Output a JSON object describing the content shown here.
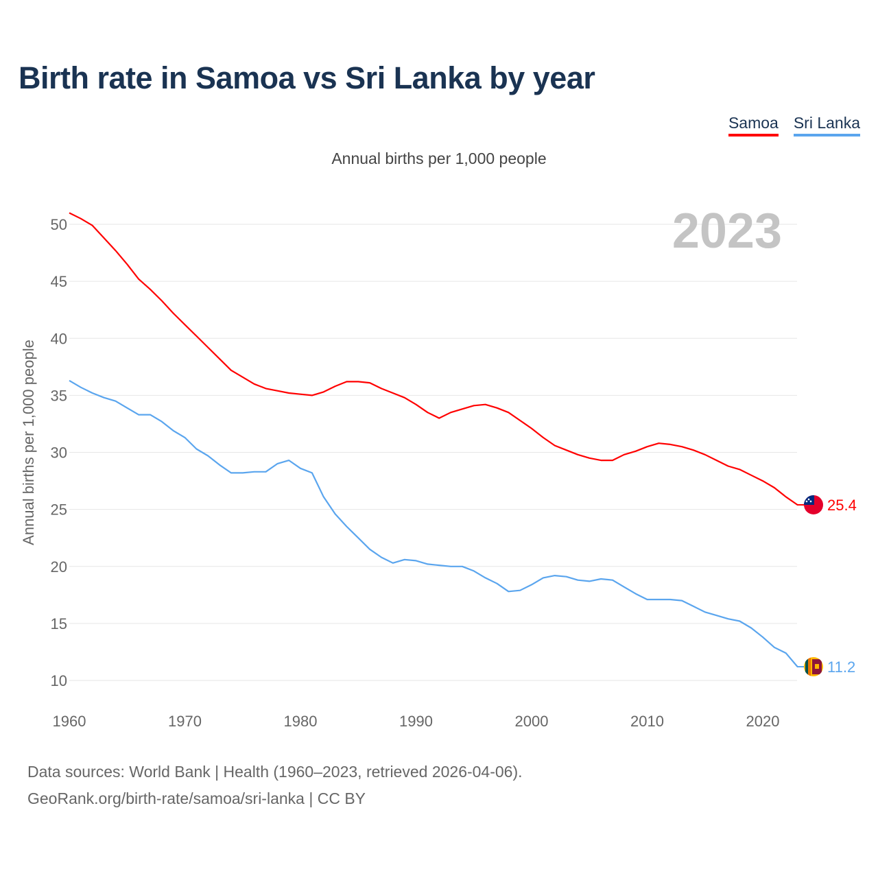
{
  "title": "Birth rate in Samoa vs Sri Lanka by year",
  "legend": [
    {
      "label": "Samoa",
      "color": "#ff0000"
    },
    {
      "label": "Sri Lanka",
      "color": "#5aa5ee"
    }
  ],
  "footer": {
    "line1": "Data sources: World Bank | Health (1960–2023, retrieved 2026-04-06).",
    "line2": "GeoRank.org/birth-rate/samoa/sri-lanka | CC BY"
  },
  "chart_data": {
    "type": "line",
    "title": "Birth rate in Samoa vs Sri Lanka by year",
    "subtitle": "Annual births per 1,000 people",
    "ylabel": "Annual births per 1,000 people",
    "xlabel": "",
    "year_watermark": "2023",
    "xlim": [
      1960,
      2023
    ],
    "ylim": [
      8,
      52
    ],
    "yticks": [
      10,
      15,
      20,
      25,
      30,
      35,
      40,
      45,
      50
    ],
    "xticks": [
      1960,
      1970,
      1980,
      1990,
      2000,
      2010,
      2020
    ],
    "grid": true,
    "legend_position": "top-right",
    "x": [
      1960,
      1961,
      1962,
      1963,
      1964,
      1965,
      1966,
      1967,
      1968,
      1969,
      1970,
      1971,
      1972,
      1973,
      1974,
      1975,
      1976,
      1977,
      1978,
      1979,
      1980,
      1981,
      1982,
      1983,
      1984,
      1985,
      1986,
      1987,
      1988,
      1989,
      1990,
      1991,
      1992,
      1993,
      1994,
      1995,
      1996,
      1997,
      1998,
      1999,
      2000,
      2001,
      2002,
      2003,
      2004,
      2005,
      2006,
      2007,
      2008,
      2009,
      2010,
      2011,
      2012,
      2013,
      2014,
      2015,
      2016,
      2017,
      2018,
      2019,
      2020,
      2021,
      2022,
      2023
    ],
    "series": [
      {
        "name": "Samoa",
        "color": "#ff0000",
        "end_label": "25.4",
        "values": [
          51.0,
          50.5,
          49.9,
          48.8,
          47.7,
          46.5,
          45.2,
          44.3,
          43.3,
          42.2,
          41.2,
          40.2,
          39.2,
          38.2,
          37.2,
          36.6,
          36.0,
          35.6,
          35.4,
          35.2,
          35.1,
          35.0,
          35.3,
          35.8,
          36.2,
          36.2,
          36.1,
          35.6,
          35.2,
          34.8,
          34.2,
          33.5,
          33.0,
          33.5,
          33.8,
          34.1,
          34.2,
          33.9,
          33.5,
          32.8,
          32.1,
          31.3,
          30.6,
          30.2,
          29.8,
          29.5,
          29.3,
          29.3,
          29.8,
          30.1,
          30.5,
          30.8,
          30.7,
          30.5,
          30.2,
          29.8,
          29.3,
          28.8,
          28.5,
          28.0,
          27.5,
          26.9,
          26.1,
          25.4
        ]
      },
      {
        "name": "Sri Lanka",
        "color": "#5aa5ee",
        "end_label": "11.2",
        "values": [
          36.3,
          35.7,
          35.2,
          34.8,
          34.5,
          33.9,
          33.3,
          33.3,
          32.7,
          31.9,
          31.3,
          30.3,
          29.7,
          28.9,
          28.2,
          28.2,
          28.3,
          28.3,
          29.0,
          29.3,
          28.6,
          28.2,
          26.1,
          24.6,
          23.5,
          22.5,
          21.5,
          20.8,
          20.3,
          20.6,
          20.5,
          20.2,
          20.1,
          20.0,
          20.0,
          19.6,
          19.0,
          18.5,
          17.8,
          17.9,
          18.4,
          19.0,
          19.2,
          19.1,
          18.8,
          18.7,
          18.9,
          18.8,
          18.2,
          17.6,
          17.1,
          17.1,
          17.1,
          17.0,
          16.5,
          16.0,
          15.7,
          15.4,
          15.2,
          14.6,
          13.8,
          12.9,
          12.4,
          11.2
        ]
      }
    ]
  }
}
